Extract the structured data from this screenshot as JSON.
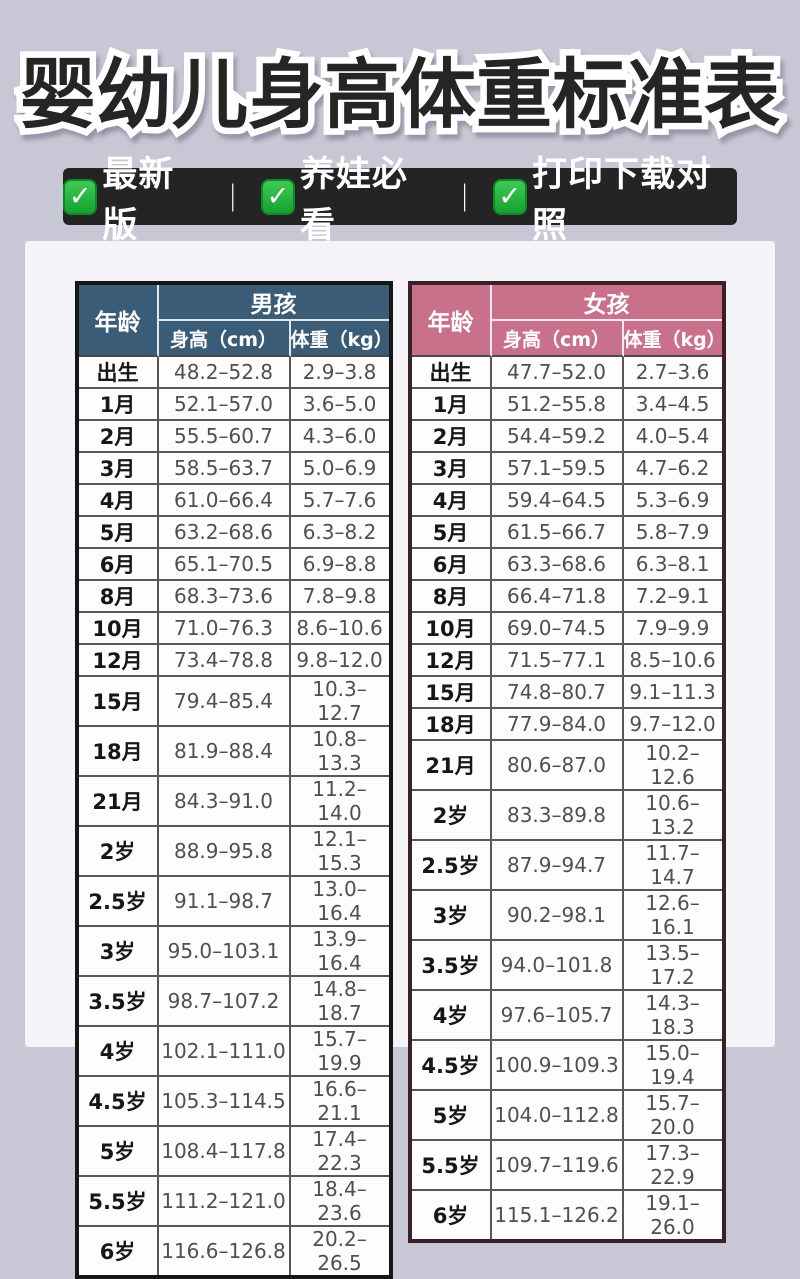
{
  "title": "婴幼儿身高体重标准表",
  "badge_bar": {
    "check_icon": "✓",
    "separator": "｜",
    "badges": [
      "最新版",
      "养娃必看",
      "打印下载对照"
    ]
  },
  "colors": {
    "page_background": "#c7c7d5",
    "card_background": "#f4f3f8",
    "badge_bar_background": "#242424",
    "check_green": "#23b53d",
    "boys_header": "#3b5c77",
    "boys_border": "#161616",
    "girls_header": "#c9718a",
    "girls_border": "#3a2027"
  },
  "tables": [
    {
      "gender": "男孩",
      "age_header": "年龄",
      "height_header": "身高（cm）",
      "weight_header": "体重（kg）",
      "header_color": "#3b5c77",
      "border_color": "#161616",
      "rows": [
        [
          "出生",
          "48.2–52.8",
          "2.9–3.8"
        ],
        [
          "1月",
          "52.1–57.0",
          "3.6–5.0"
        ],
        [
          "2月",
          "55.5–60.7",
          "4.3–6.0"
        ],
        [
          "3月",
          "58.5–63.7",
          "5.0–6.9"
        ],
        [
          "4月",
          "61.0–66.4",
          "5.7–7.6"
        ],
        [
          "5月",
          "63.2–68.6",
          "6.3–8.2"
        ],
        [
          "6月",
          "65.1–70.5",
          "6.9–8.8"
        ],
        [
          "8月",
          "68.3–73.6",
          "7.8–9.8"
        ],
        [
          "10月",
          "71.0–76.3",
          "8.6–10.6"
        ],
        [
          "12月",
          "73.4–78.8",
          "9.8–12.0"
        ],
        [
          "15月",
          "79.4–85.4",
          "10.3–12.7"
        ],
        [
          "18月",
          "81.9–88.4",
          "10.8–13.3"
        ],
        [
          "21月",
          "84.3–91.0",
          "11.2–14.0"
        ],
        [
          "2岁",
          "88.9–95.8",
          "12.1–15.3"
        ],
        [
          "2.5岁",
          "91.1–98.7",
          "13.0–16.4"
        ],
        [
          "3岁",
          "95.0–103.1",
          "13.9–16.4"
        ],
        [
          "3.5岁",
          "98.7–107.2",
          "14.8–18.7"
        ],
        [
          "4岁",
          "102.1–111.0",
          "15.7–19.9"
        ],
        [
          "4.5岁",
          "105.3–114.5",
          "16.6–21.1"
        ],
        [
          "5岁",
          "108.4–117.8",
          "17.4–22.3"
        ],
        [
          "5.5岁",
          "111.2–121.0",
          "18.4–23.6"
        ],
        [
          "6岁",
          "116.6–126.8",
          "20.2–26.5"
        ]
      ]
    },
    {
      "gender": "女孩",
      "age_header": "年龄",
      "height_header": "身高（cm）",
      "weight_header": "体重（kg）",
      "header_color": "#c9718a",
      "border_color": "#3a2027",
      "rows": [
        [
          "出生",
          "47.7–52.0",
          "2.7–3.6"
        ],
        [
          "1月",
          "51.2–55.8",
          "3.4–4.5"
        ],
        [
          "2月",
          "54.4–59.2",
          "4.0–5.4"
        ],
        [
          "3月",
          "57.1–59.5",
          "4.7–6.2"
        ],
        [
          "4月",
          "59.4–64.5",
          "5.3–6.9"
        ],
        [
          "5月",
          "61.5–66.7",
          "5.8–7.9"
        ],
        [
          "6月",
          "63.3–68.6",
          "6.3–8.1"
        ],
        [
          "8月",
          "66.4–71.8",
          "7.2–9.1"
        ],
        [
          "10月",
          "69.0–74.5",
          "7.9–9.9"
        ],
        [
          "12月",
          "71.5–77.1",
          "8.5–10.6"
        ],
        [
          "15月",
          "74.8–80.7",
          "9.1–11.3"
        ],
        [
          "18月",
          "77.9–84.0",
          "9.7–12.0"
        ],
        [
          "21月",
          "80.6–87.0",
          "10.2–12.6"
        ],
        [
          "2岁",
          "83.3–89.8",
          "10.6–13.2"
        ],
        [
          "2.5岁",
          "87.9–94.7",
          "11.7–14.7"
        ],
        [
          "3岁",
          "90.2–98.1",
          "12.6–16.1"
        ],
        [
          "3.5岁",
          "94.0–101.8",
          "13.5–17.2"
        ],
        [
          "4岁",
          "97.6–105.7",
          "14.3–18.3"
        ],
        [
          "4.5岁",
          "100.9–109.3",
          "15.0–19.4"
        ],
        [
          "5岁",
          "104.0–112.8",
          "15.7–20.0"
        ],
        [
          "5.5岁",
          "109.7–119.6",
          "17.3–22.9"
        ],
        [
          "6岁",
          "115.1–126.2",
          "19.1–26.0"
        ]
      ]
    }
  ]
}
